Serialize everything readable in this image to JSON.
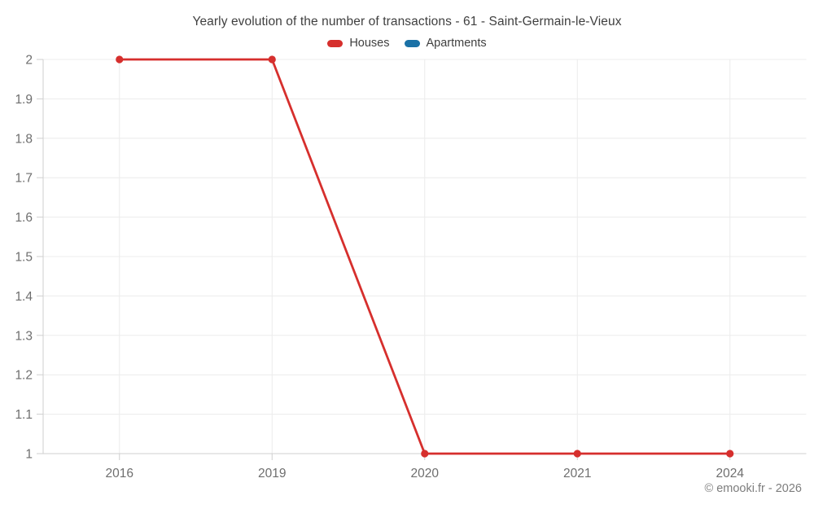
{
  "title": "Yearly evolution of the number of transactions - 61 - Saint-Germain-le-Vieux",
  "copyright": "© emooki.fr - 2026",
  "legend": {
    "items": [
      {
        "label": "Houses",
        "color": "#d62f2d"
      },
      {
        "label": "Apartments",
        "color": "#1a71a6"
      }
    ]
  },
  "chart_data": {
    "type": "line",
    "title": "Yearly evolution of the number of transactions - 61 - Saint-Germain-le-Vieux",
    "xlabel": "",
    "ylabel": "",
    "categories": [
      "2016",
      "2019",
      "2020",
      "2021",
      "2024"
    ],
    "series": [
      {
        "name": "Houses",
        "color": "#d62f2d",
        "values": [
          2,
          2,
          1,
          1,
          1
        ]
      },
      {
        "name": "Apartments",
        "color": "#1a71a6",
        "values": []
      }
    ],
    "ylim": [
      1,
      2
    ],
    "ytick_step": 0.1,
    "y_tick_labels": [
      "2",
      "1.9",
      "1.8",
      "1.7",
      "1.6",
      "1.5",
      "1.4",
      "1.3",
      "1.2",
      "1.1",
      "1"
    ],
    "grid": true,
    "legend_position": "top",
    "colors": {
      "grid": "#ececec",
      "axis": "#cfcfcf",
      "tick_text": "#6e6e6e",
      "title_text": "#3f3f3f"
    }
  }
}
